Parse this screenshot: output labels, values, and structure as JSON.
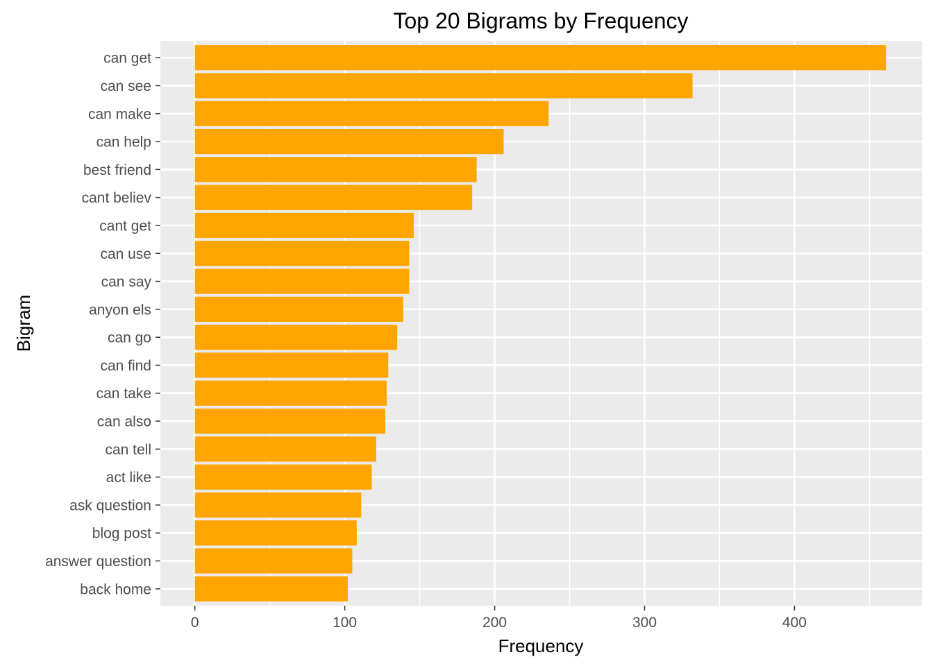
{
  "chart_data": {
    "type": "bar",
    "orientation": "horizontal",
    "title": "Top 20 Bigrams by Frequency",
    "xlabel": "Frequency",
    "ylabel": "Bigram",
    "categories": [
      "can get",
      "can see",
      "can make",
      "can help",
      "best friend",
      "cant believ",
      "cant get",
      "can use",
      "can say",
      "anyon els",
      "can go",
      "can find",
      "can take",
      "can also",
      "can tell",
      "act like",
      "ask question",
      "blog post",
      "answer question",
      "back home"
    ],
    "values": [
      461,
      332,
      236,
      206,
      188,
      185,
      146,
      143,
      143,
      139,
      135,
      129,
      128,
      127,
      121,
      118,
      111,
      108,
      105,
      102
    ],
    "xlim": [
      -23,
      485
    ],
    "x_ticks": [
      0,
      100,
      200,
      300,
      400
    ],
    "x_tick_labels": [
      "0",
      "100",
      "200",
      "300",
      "400"
    ],
    "grid": true,
    "bar_color": "#FFA500",
    "panel_color": "#EBEBEB",
    "grid_color": "#FFFFFF"
  }
}
